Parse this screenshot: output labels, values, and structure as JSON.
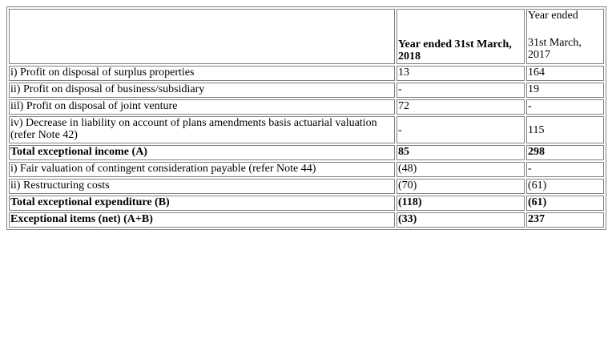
{
  "header": {
    "col1": "",
    "col2": "Year ended 31st March, 2018",
    "col3_line1": "Year ended",
    "col3_line2": "31st March, 2017"
  },
  "rows": [
    {
      "label": "i) Profit on disposal of surplus properties",
      "v2018": "13",
      "v2017": "164",
      "bold": false
    },
    {
      "label": "ii) Profit on disposal of business/subsidiary",
      "v2018": "-",
      "v2017": "19",
      "bold": false
    },
    {
      "label": "iil) Profit on disposal of joint venture",
      "v2018": "72",
      "v2017": "-",
      "bold": false
    },
    {
      "label": "iv) Decrease in liability on account of plans amendments basis actuarial valuation (refer Note 42)",
      "v2018": "-",
      "v2017": "115",
      "bold": false
    },
    {
      "label": "Total exceptional income (A)",
      "v2018": "85",
      "v2017": "298",
      "bold": true
    },
    {
      "label": "i) Fair valuation of contingent consideration payable (refer Note 44)",
      "v2018": "(48)",
      "v2017": "-",
      "bold": false
    },
    {
      "label": "ii) Restructuring costs",
      "v2018": "(70)",
      "v2017": "(61)",
      "bold": false
    },
    {
      "label": "Total exceptional expenditure (B)",
      "v2018": "(118)",
      "v2017": "(61)",
      "bold": true
    },
    {
      "label": "Exceptional items (net) (A+B)",
      "v2018": "(33)",
      "v2017": "237",
      "bold": true
    }
  ]
}
